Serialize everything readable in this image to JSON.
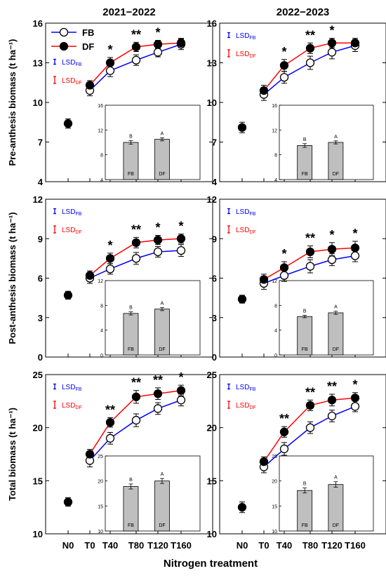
{
  "columns": [
    "2021−2022",
    "2022−2023"
  ],
  "xlabel": "Nitrogen treatment",
  "x_tick_labels": [
    "N0",
    "T0",
    "T40",
    "T80",
    "T120",
    "T160"
  ],
  "legend": {
    "fb": "FB",
    "df": "DF"
  },
  "lsd": {
    "prefix": "LSD",
    "fb_sub": "FB",
    "df_sub": "DF"
  },
  "colors": {
    "fb_line": "#0000ff",
    "df_line": "#ff0000",
    "marker": "#000000",
    "inset_bar": "#bfbfbf"
  },
  "chart_data": [
    {
      "type": "line",
      "row": 0,
      "col": 0,
      "ylabel": "Pre-anthesis biomass (t ha⁻¹)",
      "ylim": [
        4,
        16
      ],
      "yticks": [
        4,
        7,
        10,
        13,
        16
      ],
      "x": [
        "N0",
        "T0",
        "T40",
        "T80",
        "T120",
        "T160"
      ],
      "n0": {
        "value": 8.4,
        "err": 0.35
      },
      "series": [
        {
          "name": "FB",
          "values": [
            null,
            10.9,
            12.4,
            13.2,
            13.8,
            14.4
          ],
          "err": [
            null,
            0.4,
            0.45,
            0.4,
            0.35,
            0.4
          ]
        },
        {
          "name": "DF",
          "values": [
            null,
            11.3,
            13.0,
            14.2,
            14.4,
            14.5
          ],
          "err": [
            null,
            0.35,
            0.4,
            0.35,
            0.3,
            0.35
          ]
        }
      ],
      "significance": [
        "",
        "",
        "*",
        "**",
        "*",
        ""
      ],
      "legend_shown": true,
      "lsd_shown": true,
      "inset": {
        "type": "bar",
        "categories": [
          "FB",
          "DF"
        ],
        "values": [
          10.0,
          10.5
        ],
        "err": [
          0.3,
          0.25
        ],
        "letters": [
          "B",
          "A"
        ],
        "ylim": [
          4,
          16
        ],
        "yticks": [
          4,
          8,
          12,
          16
        ]
      }
    },
    {
      "type": "line",
      "row": 0,
      "col": 1,
      "ylabel": "",
      "ylim": [
        4,
        16
      ],
      "yticks": [
        4,
        7,
        10,
        13,
        16
      ],
      "x": [
        "N0",
        "T0",
        "T40",
        "T80",
        "T120",
        "T160"
      ],
      "n0": {
        "value": 8.1,
        "err": 0.4
      },
      "series": [
        {
          "name": "FB",
          "values": [
            null,
            10.6,
            11.9,
            13.0,
            13.8,
            14.3
          ],
          "err": [
            null,
            0.45,
            0.45,
            0.5,
            0.5,
            0.45
          ]
        },
        {
          "name": "DF",
          "values": [
            null,
            10.9,
            12.8,
            14.1,
            14.5,
            14.5
          ],
          "err": [
            null,
            0.4,
            0.45,
            0.4,
            0.35,
            0.35
          ]
        }
      ],
      "significance": [
        "",
        "",
        "*",
        "**",
        "*",
        ""
      ],
      "legend_shown": false,
      "lsd_shown": true,
      "inset": {
        "type": "bar",
        "categories": [
          "FB",
          "DF"
        ],
        "values": [
          9.5,
          10.0
        ],
        "err": [
          0.3,
          0.25
        ],
        "letters": [
          "B",
          "A"
        ],
        "ylim": [
          4,
          16
        ],
        "yticks": [
          4,
          8,
          12,
          16
        ]
      }
    },
    {
      "type": "line",
      "row": 1,
      "col": 0,
      "ylabel": "Post-anthesis biomass (t ha⁻¹)",
      "ylim": [
        0,
        12
      ],
      "yticks": [
        0,
        3,
        6,
        9,
        12
      ],
      "x": [
        "N0",
        "T0",
        "T40",
        "T80",
        "T120",
        "T160"
      ],
      "n0": {
        "value": 4.7,
        "err": 0.3
      },
      "series": [
        {
          "name": "FB",
          "values": [
            null,
            6.0,
            6.7,
            7.5,
            8.0,
            8.1
          ],
          "err": [
            null,
            0.4,
            0.4,
            0.45,
            0.4,
            0.45
          ]
        },
        {
          "name": "DF",
          "values": [
            null,
            6.2,
            7.5,
            8.7,
            8.9,
            9.0
          ],
          "err": [
            null,
            0.35,
            0.4,
            0.4,
            0.35,
            0.35
          ]
        }
      ],
      "significance": [
        "",
        "",
        "*",
        "**",
        "*",
        "*"
      ],
      "legend_shown": false,
      "lsd_shown": true,
      "inset": {
        "type": "bar",
        "categories": [
          "FB",
          "DF"
        ],
        "values": [
          6.7,
          7.4
        ],
        "err": [
          0.25,
          0.25
        ],
        "letters": [
          "B",
          "A"
        ],
        "ylim": [
          0,
          12
        ],
        "yticks": [
          0,
          4,
          8,
          12
        ]
      }
    },
    {
      "type": "line",
      "row": 1,
      "col": 1,
      "ylabel": "",
      "ylim": [
        0,
        12
      ],
      "yticks": [
        0,
        3,
        6,
        9,
        12
      ],
      "x": [
        "N0",
        "T0",
        "T40",
        "T80",
        "T120",
        "T160"
      ],
      "n0": {
        "value": 4.4,
        "err": 0.3
      },
      "series": [
        {
          "name": "FB",
          "values": [
            null,
            5.6,
            6.2,
            6.9,
            7.4,
            7.7
          ],
          "err": [
            null,
            0.45,
            0.45,
            0.5,
            0.45,
            0.45
          ]
        },
        {
          "name": "DF",
          "values": [
            null,
            5.9,
            6.8,
            8.0,
            8.2,
            8.3
          ],
          "err": [
            null,
            0.4,
            0.45,
            0.45,
            0.5,
            0.5
          ]
        }
      ],
      "significance": [
        "",
        "",
        "*",
        "**",
        "*",
        "*"
      ],
      "legend_shown": false,
      "lsd_shown": true,
      "inset": {
        "type": "bar",
        "categories": [
          "FB",
          "DF"
        ],
        "values": [
          6.2,
          6.8
        ],
        "err": [
          0.2,
          0.25
        ],
        "letters": [
          "B",
          "A"
        ],
        "ylim": [
          0,
          12
        ],
        "yticks": [
          0,
          4,
          8,
          12
        ]
      }
    },
    {
      "type": "line",
      "row": 2,
      "col": 0,
      "ylabel": "Total biomass (t ha⁻¹)",
      "ylim": [
        10,
        25
      ],
      "yticks": [
        10,
        15,
        20,
        25
      ],
      "x": [
        "N0",
        "T0",
        "T40",
        "T80",
        "T120",
        "T160"
      ],
      "n0": {
        "value": 13.0,
        "err": 0.4
      },
      "series": [
        {
          "name": "FB",
          "values": [
            null,
            16.9,
            19.0,
            20.7,
            21.8,
            22.6
          ],
          "err": [
            null,
            0.6,
            0.55,
            0.6,
            0.55,
            0.55
          ]
        },
        {
          "name": "DF",
          "values": [
            null,
            17.5,
            20.5,
            22.9,
            23.2,
            23.5
          ],
          "err": [
            null,
            0.45,
            0.45,
            0.6,
            0.55,
            0.5
          ]
        }
      ],
      "significance": [
        "",
        "",
        "**",
        "**",
        "**",
        "*"
      ],
      "legend_shown": false,
      "lsd_shown": true,
      "inset": {
        "type": "bar",
        "categories": [
          "FB",
          "DF"
        ],
        "values": [
          18.9,
          20.0
        ],
        "err": [
          0.5,
          0.5
        ],
        "letters": [
          "B",
          "A"
        ],
        "ylim": [
          10,
          25
        ],
        "yticks": [
          10,
          15,
          20,
          25
        ]
      }
    },
    {
      "type": "line",
      "row": 2,
      "col": 1,
      "ylabel": "",
      "ylim": [
        10,
        25
      ],
      "yticks": [
        10,
        15,
        20,
        25
      ],
      "x": [
        "N0",
        "T0",
        "T40",
        "T80",
        "T120",
        "T160"
      ],
      "n0": {
        "value": 12.5,
        "err": 0.5
      },
      "series": [
        {
          "name": "FB",
          "values": [
            null,
            16.3,
            18.0,
            20.0,
            21.1,
            22.0
          ],
          "err": [
            null,
            0.55,
            0.6,
            0.55,
            0.55,
            0.5
          ]
        },
        {
          "name": "DF",
          "values": [
            null,
            16.8,
            19.6,
            22.1,
            22.6,
            22.8
          ],
          "err": [
            null,
            0.45,
            0.5,
            0.5,
            0.55,
            0.5
          ]
        }
      ],
      "significance": [
        "",
        "",
        "**",
        "**",
        "**",
        "*"
      ],
      "legend_shown": false,
      "lsd_shown": true,
      "inset": {
        "type": "bar",
        "categories": [
          "FB",
          "DF"
        ],
        "values": [
          18.1,
          19.3
        ],
        "err": [
          0.5,
          0.55
        ],
        "letters": [
          "B",
          "A"
        ],
        "ylim": [
          10,
          25
        ],
        "yticks": [
          10,
          15,
          20,
          25
        ]
      }
    }
  ]
}
